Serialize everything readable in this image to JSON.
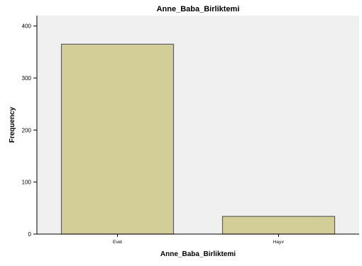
{
  "chart_data": {
    "type": "bar",
    "title": "Anne_Baba_Birliktemi",
    "xlabel": "Anne_Baba_Birliktemi",
    "ylabel": "Frequency",
    "categories": [
      "Evet",
      "Hayır"
    ],
    "values": [
      365,
      34
    ],
    "ylim": [
      0,
      420
    ],
    "yticks": [
      0,
      100,
      200,
      300,
      400
    ],
    "grid": false,
    "legend": "none",
    "colors": {
      "plot_background": "#f0f0f0",
      "bar_fill": "#d3ce97",
      "bar_stroke": "#5e5e5e",
      "axis": "#000000"
    }
  }
}
